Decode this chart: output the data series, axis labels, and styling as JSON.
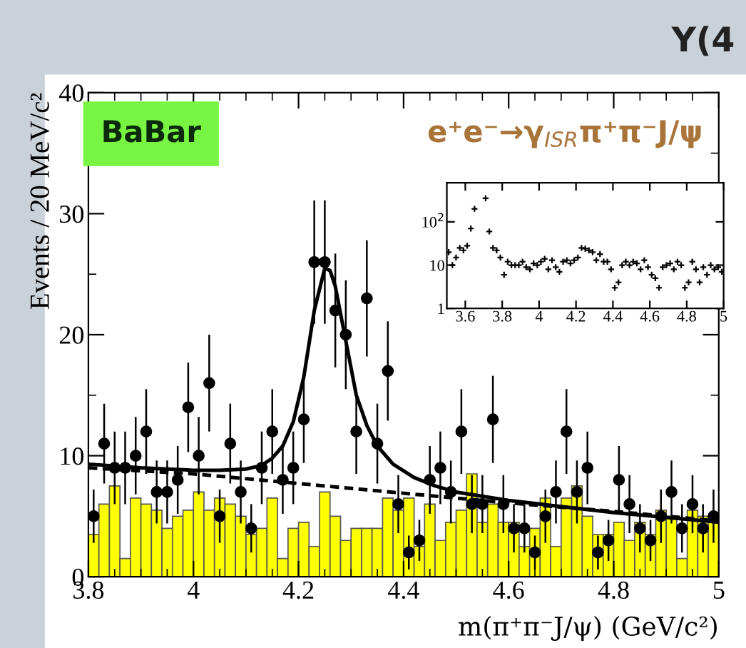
{
  "chart_data": [
    {
      "type": "scatter",
      "title": "Y(4",
      "xlabel": "m(π⁺π⁻J/ψ) (GeV/c²)",
      "ylabel": "Events / 20 MeV/c²",
      "annotations": [
        "BaBar",
        "e⁺e⁻→γ$_{ISR}$π⁺π⁻J/ψ"
      ],
      "xlim": [
        3.8,
        5.0
      ],
      "ylim": [
        0,
        40
      ],
      "xticks": [
        3.8,
        4,
        4.2,
        4.4,
        4.6,
        4.8,
        5
      ],
      "yticks": [
        0,
        10,
        20,
        30,
        40
      ],
      "grid": false,
      "legend": false,
      "series": [
        {
          "type": "histogram",
          "color": "#ffff00",
          "bins": [
            3.8,
            3.82,
            3.84,
            3.86,
            3.88,
            3.9,
            3.92,
            3.94,
            3.96,
            3.98,
            4.0,
            4.02,
            4.04,
            4.06,
            4.08,
            4.1,
            4.12,
            4.14,
            4.16,
            4.18,
            4.2,
            4.22,
            4.24,
            4.26,
            4.28,
            4.3,
            4.32,
            4.34,
            4.36,
            4.38,
            4.4,
            4.42,
            4.44,
            4.46,
            4.48,
            4.5,
            4.52,
            4.54,
            4.56,
            4.58,
            4.6,
            4.62,
            4.64,
            4.66,
            4.68,
            4.7,
            4.72,
            4.74,
            4.76,
            4.78,
            4.8,
            4.82,
            4.84,
            4.86,
            4.88,
            4.9,
            4.92,
            4.94,
            4.96,
            4.98,
            5.0
          ],
          "values": [
            3.5,
            6,
            7.5,
            1.5,
            6.5,
            6,
            5.5,
            4,
            5,
            5.5,
            7,
            5.5,
            6.5,
            6,
            5,
            3.5,
            4,
            6.5,
            1.5,
            4,
            4.5,
            2.5,
            7,
            5,
            3,
            4,
            4,
            4,
            6.5,
            5.5,
            6.5,
            2.5,
            6,
            3,
            4.5,
            5.5,
            8.5,
            4.5,
            6,
            4.5,
            4.5,
            2.5,
            4,
            6.5,
            2.5,
            6.5,
            7.5,
            5,
            3.5,
            3.5,
            4.5,
            3,
            4.5,
            3.5,
            5.5,
            5,
            1.5,
            5.5,
            5,
            4.5
          ]
        },
        {
          "type": "line",
          "color": "#000000",
          "line_style": "dashed",
          "x": [
            3.8,
            4.0,
            4.2,
            4.4,
            4.6,
            4.8,
            5.0
          ],
          "values": [
            9.0,
            8.5,
            7.7,
            6.9,
            6.1,
            5.4,
            4.6
          ]
        },
        {
          "type": "line",
          "color": "#000000",
          "line_style": "solid",
          "x": [
            3.8,
            3.9,
            4.0,
            4.05,
            4.1,
            4.13,
            4.15,
            4.17,
            4.19,
            4.21,
            4.23,
            4.25,
            4.26,
            4.27,
            4.29,
            4.31,
            4.33,
            4.35,
            4.38,
            4.42,
            4.46,
            4.5,
            4.6,
            4.7,
            4.8,
            4.9,
            5.0
          ],
          "values": [
            9.3,
            9.0,
            8.8,
            8.8,
            8.9,
            9.2,
            9.8,
            10.8,
            12.8,
            16.5,
            22,
            25.5,
            25.3,
            24,
            19.5,
            15,
            12.5,
            10.8,
            9.3,
            8.2,
            7.5,
            7.0,
            6.3,
            5.8,
            5.3,
            4.9,
            4.5
          ]
        },
        {
          "color": "#000000",
          "marker": "circle",
          "x": [
            3.81,
            3.83,
            3.85,
            3.87,
            3.89,
            3.91,
            3.93,
            3.95,
            3.97,
            3.99,
            4.01,
            4.03,
            4.05,
            4.07,
            4.09,
            4.11,
            4.13,
            4.15,
            4.17,
            4.19,
            4.21,
            4.23,
            4.25,
            4.27,
            4.29,
            4.31,
            4.33,
            4.35,
            4.37,
            4.39,
            4.41,
            4.43,
            4.45,
            4.47,
            4.49,
            4.51,
            4.53,
            4.55,
            4.57,
            4.59,
            4.61,
            4.63,
            4.65,
            4.67,
            4.69,
            4.71,
            4.73,
            4.75,
            4.77,
            4.79,
            4.81,
            4.83,
            4.85,
            4.87,
            4.89,
            4.91,
            4.93,
            4.95,
            4.97,
            4.99
          ],
          "values": [
            5,
            11,
            9,
            9,
            10,
            12,
            7,
            7,
            8,
            14,
            10,
            16,
            5,
            11,
            7,
            4,
            9,
            12,
            8,
            9,
            13,
            26,
            26,
            22,
            20,
            12,
            23,
            11,
            17,
            6,
            2,
            3,
            8,
            9,
            7,
            12,
            6,
            6,
            13,
            6,
            4,
            4,
            2,
            5,
            7,
            12,
            7,
            9,
            2,
            3,
            8,
            6,
            4,
            3,
            5,
            7,
            4,
            6,
            4,
            5
          ],
          "errors": [
            2.2,
            3.3,
            3,
            3,
            3.2,
            3.5,
            2.6,
            2.6,
            2.8,
            3.7,
            3.2,
            4,
            2.2,
            3.3,
            2.6,
            2,
            3,
            3.5,
            2.8,
            3,
            3.6,
            5.1,
            5.1,
            4.7,
            4.5,
            3.5,
            4.8,
            3.3,
            4.1,
            2.4,
            1.4,
            1.7,
            2.8,
            3,
            2.6,
            3.5,
            2.4,
            2.4,
            3.6,
            2.4,
            2,
            2,
            1.4,
            2.2,
            2.6,
            3.5,
            2.6,
            3,
            1.4,
            1.7,
            2.8,
            2.4,
            2,
            1.7,
            2.2,
            2.6,
            2,
            2.4,
            2,
            2.2
          ]
        }
      ]
    },
    {
      "type": "scatter",
      "log": "y",
      "xlim": [
        3.5,
        5.0
      ],
      "ylim": [
        1,
        800
      ],
      "xticks": [
        3.6,
        3.8,
        4,
        4.2,
        4.4,
        4.6,
        4.8,
        5
      ],
      "yticks": [
        1,
        10,
        {
          "value": 100,
          "label": "10$^{2}$"
        }
      ],
      "grid": false,
      "legend": false,
      "series": [
        {
          "color": "#000000",
          "marker": "cross",
          "x": [
            3.51,
            3.53,
            3.55,
            3.57,
            3.59,
            3.61,
            3.63,
            3.65,
            3.71,
            3.73,
            3.75,
            3.77,
            3.79,
            3.81,
            3.83,
            3.85,
            3.87,
            3.89,
            3.91,
            3.93,
            3.95,
            3.97,
            3.99,
            4.01,
            4.03,
            4.05,
            4.07,
            4.09,
            4.11,
            4.13,
            4.15,
            4.17,
            4.19,
            4.21,
            4.23,
            4.25,
            4.27,
            4.29,
            4.31,
            4.33,
            4.35,
            4.37,
            4.39,
            4.41,
            4.43,
            4.45,
            4.47,
            4.49,
            4.51,
            4.53,
            4.55,
            4.57,
            4.59,
            4.61,
            4.63,
            4.65,
            4.67,
            4.69,
            4.71,
            4.73,
            4.75,
            4.77,
            4.79,
            4.81,
            4.83,
            4.85,
            4.87,
            4.89,
            4.91,
            4.93,
            4.95,
            4.97,
            4.99
          ],
          "values": [
            20,
            10,
            15,
            25,
            22,
            28,
            70,
            200,
            350,
            60,
            25,
            22,
            15,
            6,
            12,
            10,
            10,
            10,
            12,
            9,
            8,
            11,
            10,
            12,
            14,
            8,
            13,
            9,
            7,
            12,
            13,
            11,
            13,
            15,
            25,
            24,
            22,
            20,
            13,
            18,
            12,
            12,
            8,
            3,
            4,
            10,
            12,
            10,
            12,
            11,
            8,
            13,
            9,
            6,
            5,
            3,
            9,
            10,
            11,
            8,
            12,
            10,
            3,
            4,
            12,
            8,
            4,
            9,
            6,
            10,
            8,
            9,
            7
          ]
        }
      ]
    }
  ]
}
